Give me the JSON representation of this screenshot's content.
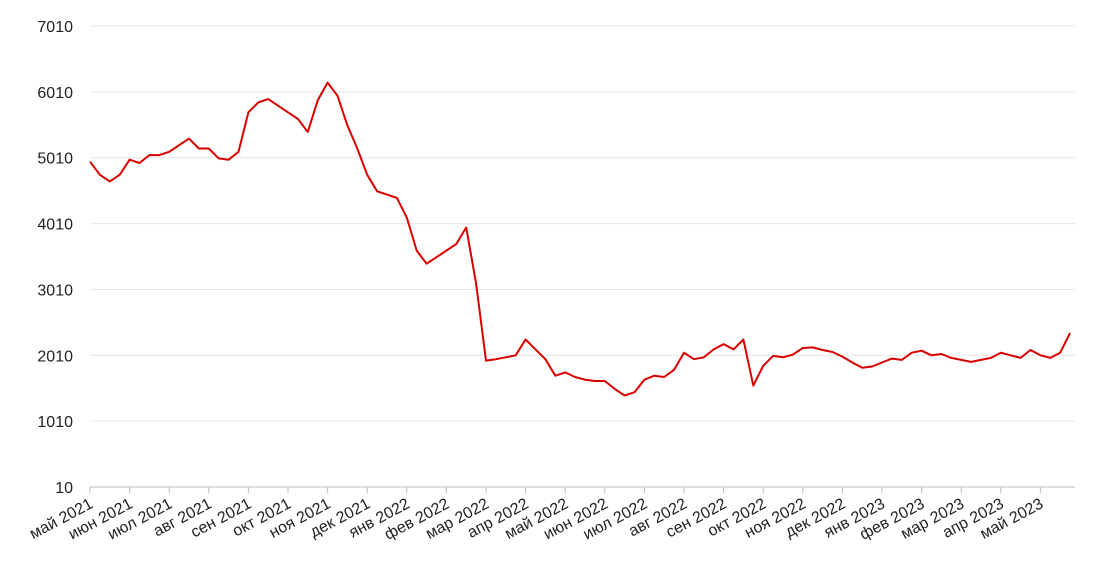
{
  "chart_data": {
    "type": "line",
    "categories": [
      "май 2021",
      null,
      null,
      null,
      "июн 2021",
      null,
      null,
      null,
      "июл 2021",
      null,
      null,
      null,
      "авг 2021",
      null,
      null,
      null,
      "сен 2021",
      null,
      null,
      null,
      "окт 2021",
      null,
      null,
      null,
      "ноя 2021",
      null,
      null,
      null,
      "дек 2021",
      null,
      null,
      null,
      "янв 2022",
      null,
      null,
      null,
      "фев 2022",
      null,
      null,
      null,
      "мар 2022",
      null,
      null,
      null,
      "апр 2022",
      null,
      null,
      null,
      "май 2022",
      null,
      null,
      null,
      "июн 2022",
      null,
      null,
      null,
      "июл 2022",
      null,
      null,
      null,
      "авг 2022",
      null,
      null,
      null,
      "сен 2022",
      null,
      null,
      null,
      "окт 2022",
      null,
      null,
      null,
      "ноя 2022",
      null,
      null,
      null,
      "дек 2022",
      null,
      null,
      null,
      "янв 2023",
      null,
      null,
      null,
      "фев 2023",
      null,
      null,
      null,
      "мар 2023",
      null,
      null,
      null,
      "апр 2023",
      null,
      null,
      null,
      "май 2023",
      null,
      null,
      null
    ],
    "series": [
      {
        "color": "#d90000",
        "values": [
          4950,
          4750,
          4650,
          4750,
          4980,
          4930,
          5050,
          5050,
          5100,
          5200,
          5300,
          5150,
          5150,
          5000,
          4980,
          5100,
          5700,
          5850,
          5900,
          5800,
          5700,
          5600,
          5400,
          5880,
          6150,
          5950,
          5500,
          5150,
          4750,
          4500,
          4450,
          4400,
          4100,
          3600,
          3400,
          3500,
          3600,
          3700,
          3950,
          3100,
          1930,
          1950,
          1980,
          2010,
          2250,
          2100,
          1950,
          1700,
          1750,
          1680,
          1640,
          1620,
          1620,
          1500,
          1400,
          1450,
          1640,
          1700,
          1680,
          1790,
          2050,
          1950,
          1980,
          2100,
          2180,
          2100,
          2250,
          1550,
          1850,
          2000,
          1980,
          2020,
          2120,
          2130,
          2090,
          2060,
          1990,
          1900,
          1820,
          1840,
          1900,
          1960,
          1940,
          2050,
          2080,
          2010,
          2030,
          1970,
          1940,
          1910,
          1940,
          1970,
          2050,
          2010,
          1970,
          2090,
          2010,
          1970,
          2050,
          2350
        ]
      }
    ],
    "ylim": [
      10,
      7010
    ],
    "yticks": [
      10,
      1010,
      2010,
      3010,
      4010,
      5010,
      6010,
      7010
    ],
    "grid": true
  }
}
